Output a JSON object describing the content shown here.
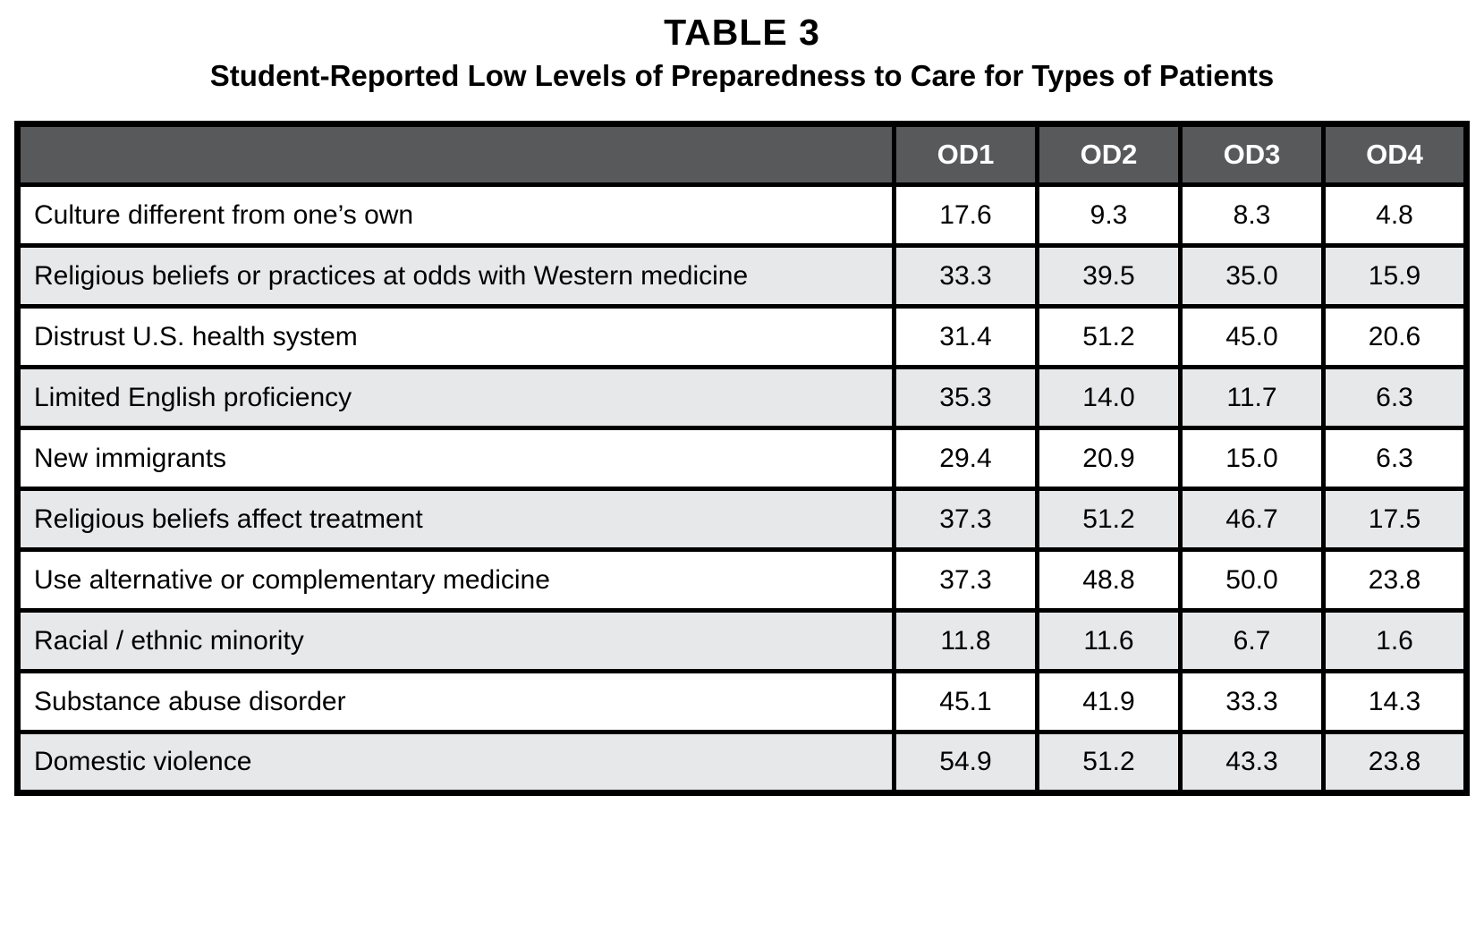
{
  "page": {
    "title": "TABLE 3",
    "subtitle": "Student-Reported Low Levels of Preparedness to Care for Types of Patients"
  },
  "table": {
    "corner_label": "",
    "columns": [
      "OD1",
      "OD2",
      "OD3",
      "OD4"
    ],
    "rows": [
      {
        "label": "Culture different from one’s own",
        "values": [
          "17.6",
          "9.3",
          "8.3",
          "4.8"
        ]
      },
      {
        "label": "Religious beliefs or practices at odds with Western medicine",
        "values": [
          "33.3",
          "39.5",
          "35.0",
          "15.9"
        ]
      },
      {
        "label": "Distrust U.S. health system",
        "values": [
          "31.4",
          "51.2",
          "45.0",
          "20.6"
        ]
      },
      {
        "label": "Limited English proficiency",
        "values": [
          "35.3",
          "14.0",
          "11.7",
          "6.3"
        ]
      },
      {
        "label": "New immigrants",
        "values": [
          "29.4",
          "20.9",
          "15.0",
          "6.3"
        ]
      },
      {
        "label": "Religious beliefs affect treatment",
        "values": [
          "37.3",
          "51.2",
          "46.7",
          "17.5"
        ]
      },
      {
        "label": "Use alternative or complementary medicine",
        "values": [
          "37.3",
          "48.8",
          "50.0",
          "23.8"
        ]
      },
      {
        "label": "Racial / ethnic minority",
        "values": [
          "11.8",
          "11.6",
          "6.7",
          "1.6"
        ]
      },
      {
        "label": "Substance abuse disorder",
        "values": [
          "45.1",
          "41.9",
          "33.3",
          "14.3"
        ]
      },
      {
        "label": "Domestic violence",
        "values": [
          "54.9",
          "51.2",
          "43.3",
          "23.8"
        ]
      }
    ]
  },
  "colors": {
    "header_bg": "#58595B",
    "header_text": "#FFFFFF",
    "row_bg": "#FFFFFF",
    "row_alt_bg": "#E7E8E9",
    "border": "#000000",
    "text": "#000000"
  },
  "chart_data": {
    "type": "table",
    "title": "TABLE 3",
    "subtitle": "Student-Reported Low Levels of Preparedness to Care for Types of Patients",
    "categories": [
      "OD1",
      "OD2",
      "OD3",
      "OD4"
    ],
    "series": [
      {
        "name": "Culture different from one’s own",
        "values": [
          17.6,
          9.3,
          8.3,
          4.8
        ]
      },
      {
        "name": "Religious beliefs or practices at odds with Western medicine",
        "values": [
          33.3,
          39.5,
          35.0,
          15.9
        ]
      },
      {
        "name": "Distrust U.S. health system",
        "values": [
          31.4,
          51.2,
          45.0,
          20.6
        ]
      },
      {
        "name": "Limited English proficiency",
        "values": [
          35.3,
          14.0,
          11.7,
          6.3
        ]
      },
      {
        "name": "New immigrants",
        "values": [
          29.4,
          20.9,
          15.0,
          6.3
        ]
      },
      {
        "name": "Religious beliefs affect treatment",
        "values": [
          37.3,
          51.2,
          46.7,
          17.5
        ]
      },
      {
        "name": "Use alternative or complementary medicine",
        "values": [
          37.3,
          48.8,
          50.0,
          23.8
        ]
      },
      {
        "name": "Racial / ethnic minority",
        "values": [
          11.8,
          11.6,
          6.7,
          1.6
        ]
      },
      {
        "name": "Substance abuse disorder",
        "values": [
          45.1,
          41.9,
          33.3,
          14.3
        ]
      },
      {
        "name": "Domestic violence",
        "values": [
          54.9,
          51.2,
          43.3,
          23.8
        ]
      }
    ]
  }
}
